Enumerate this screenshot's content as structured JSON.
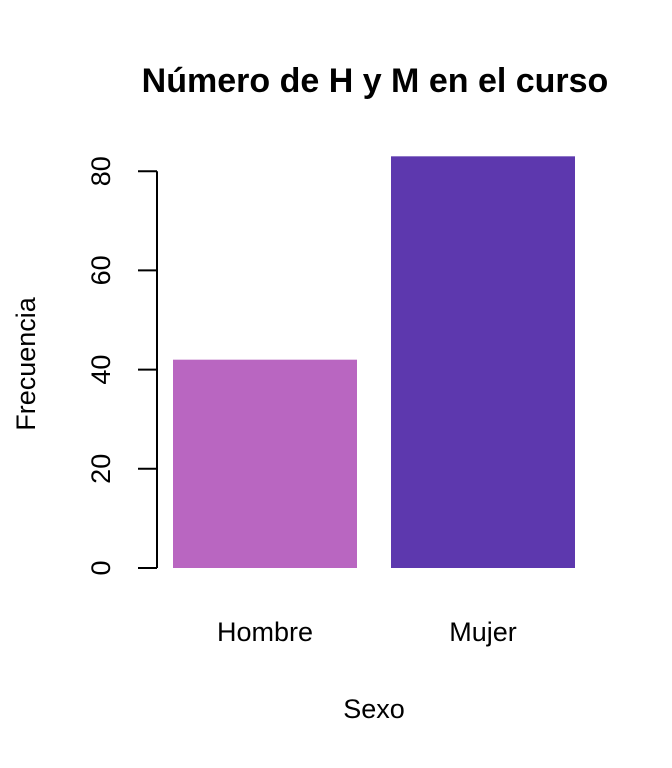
{
  "chart_data": {
    "type": "bar",
    "title": "Número de H y M en el curso",
    "xlabel": "Sexo",
    "ylabel": "Frecuencia",
    "categories": [
      "Hombre",
      "Mujer"
    ],
    "values": [
      42,
      83
    ],
    "colors": [
      "#B966C1",
      "#5D38AE"
    ],
    "ylim": [
      0,
      83
    ],
    "yticks": [
      0,
      20,
      40,
      60,
      80
    ],
    "grid": false,
    "legend": "none"
  }
}
